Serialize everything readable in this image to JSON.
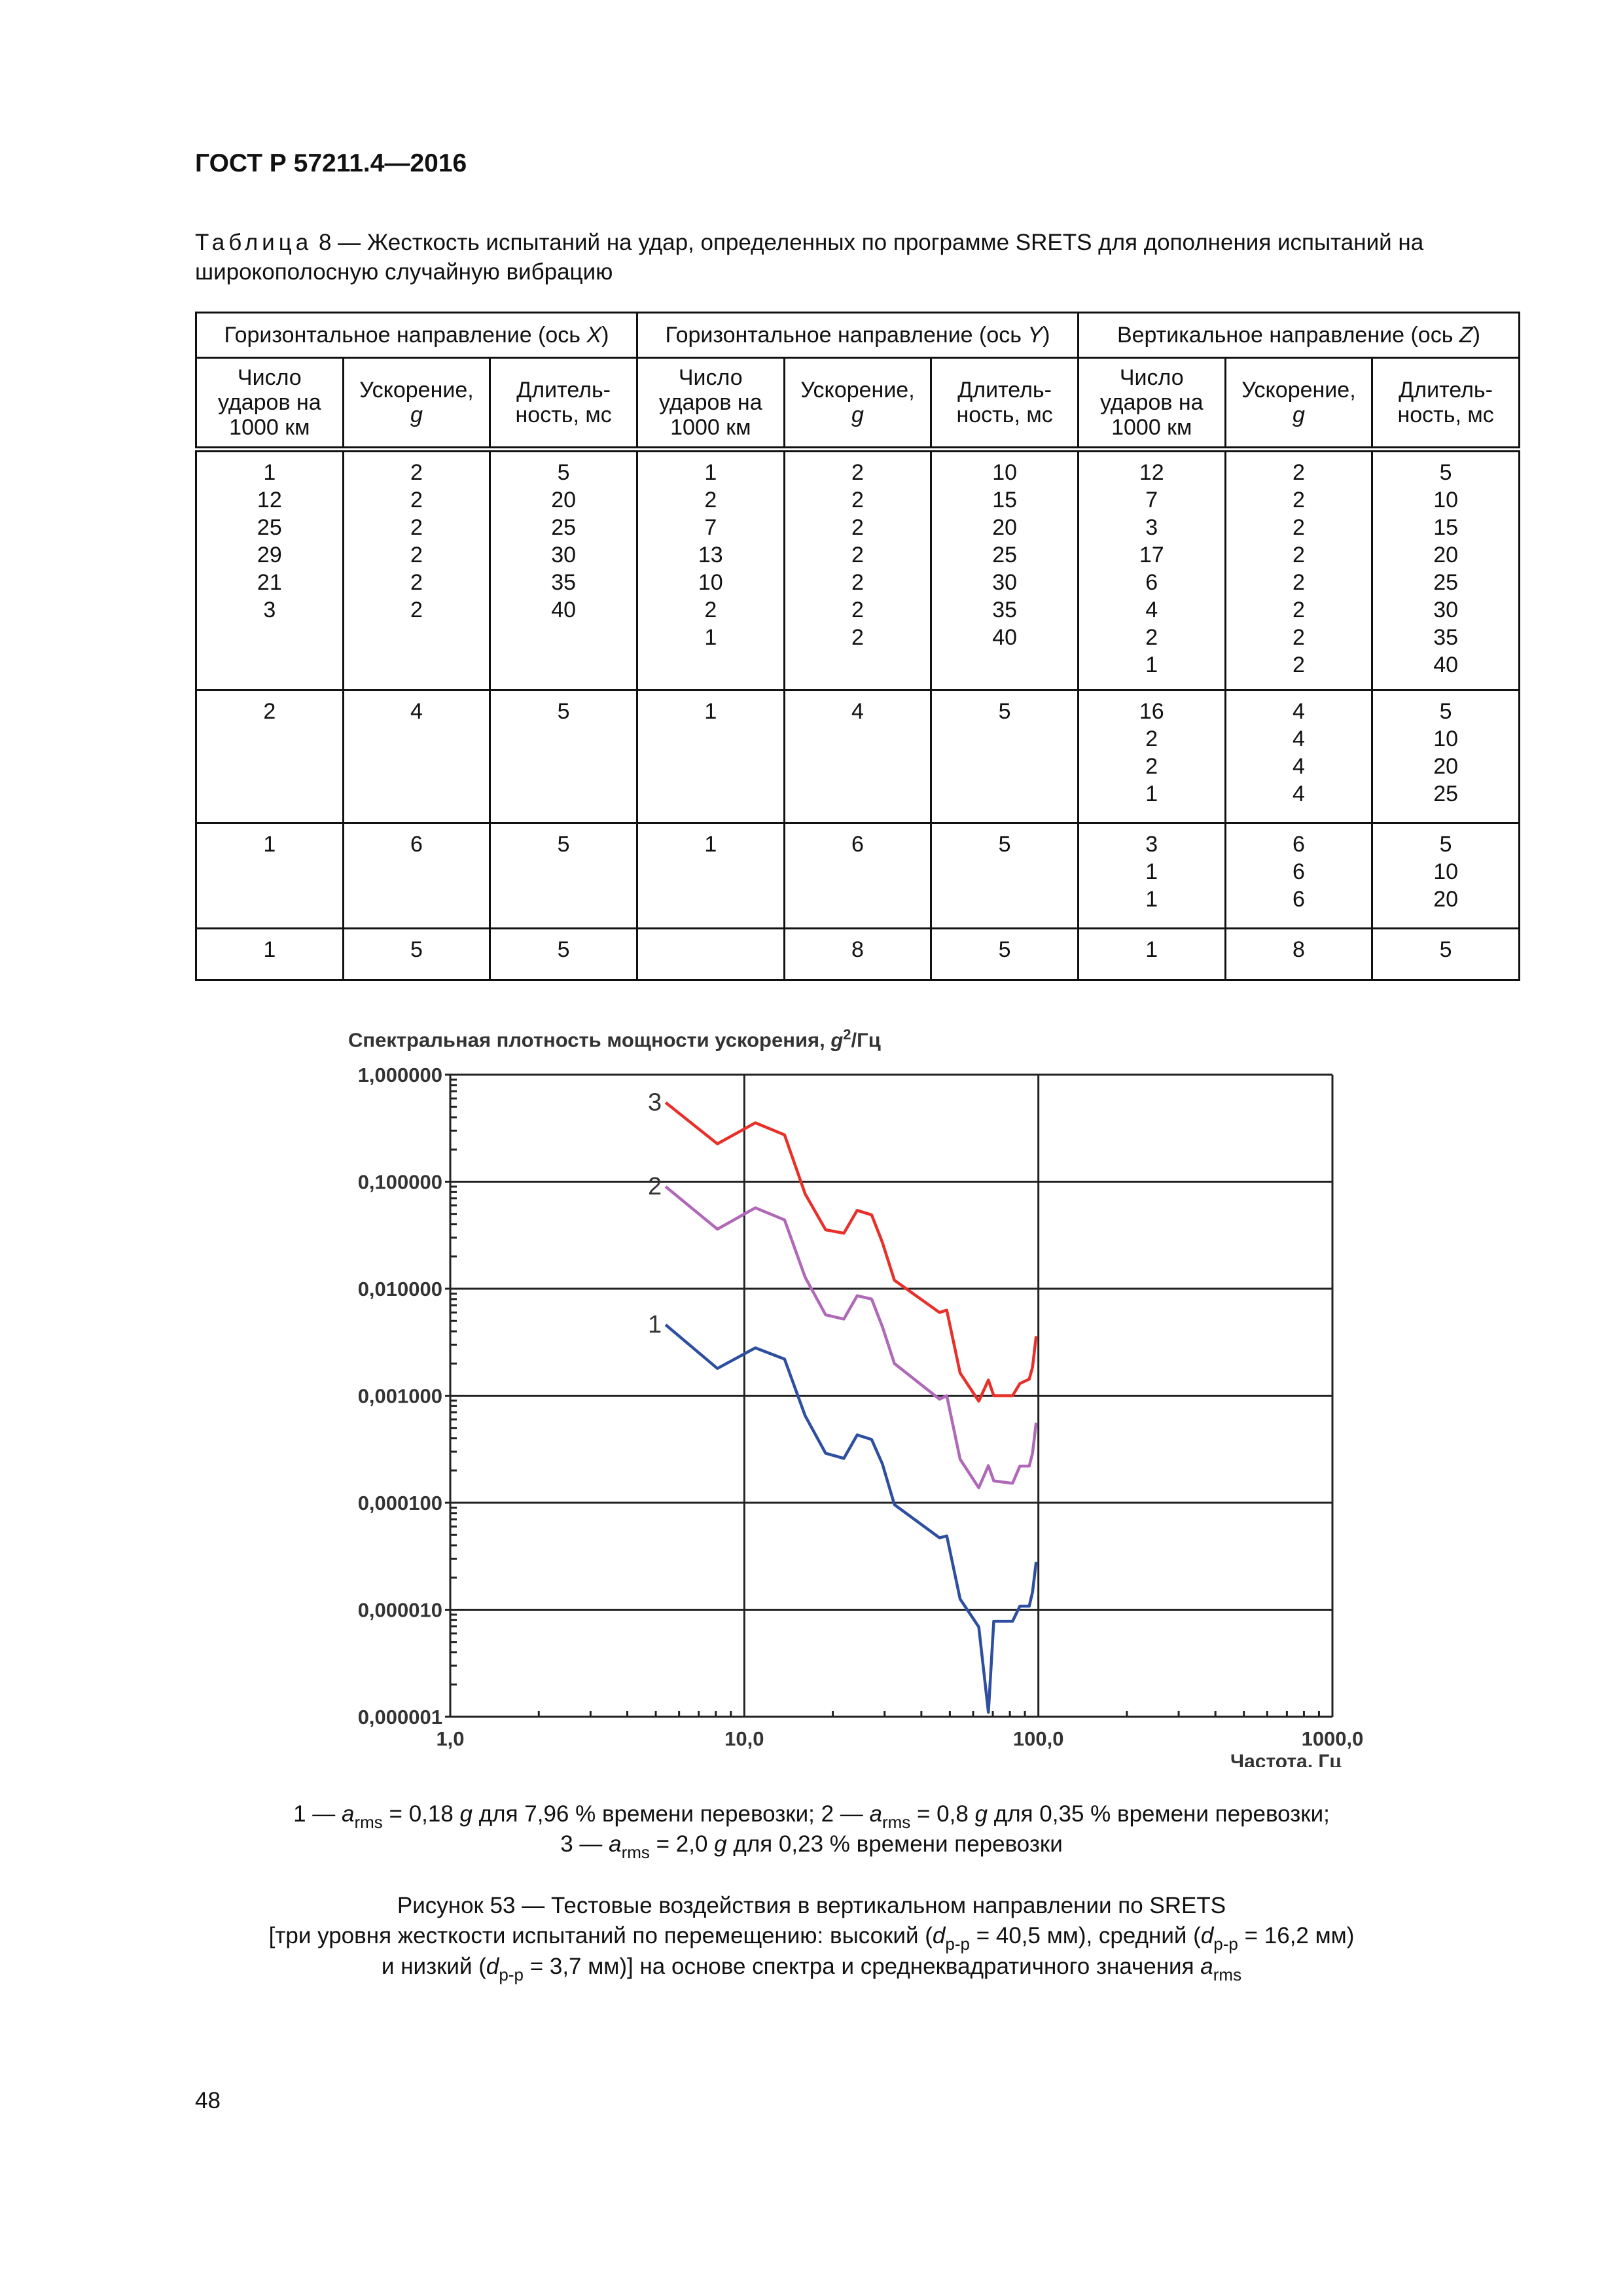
{
  "header": {
    "doc_id": "ГОСТ Р 57211.4—2016"
  },
  "table": {
    "caption_prefix": "Таблица",
    "caption_rest": " 8 — Жесткость испытаний на удар, определенных по программе SRETS для дополнения испытаний на широкополосную случайную вибрацию",
    "groups": [
      {
        "label": "Горизонтальное направление (ось ",
        "axis": "X",
        "end": ")"
      },
      {
        "label": "Горизонтальное направление (ось ",
        "axis": "Y",
        "end": ")"
      },
      {
        "label": "Вертикальное направление (ось ",
        "axis": "Z",
        "end": ")"
      }
    ],
    "subheaders": {
      "count": "Число\nударов на\n1000 км",
      "accel": "Ускорение,",
      "accel_unit": "g",
      "duration": "Длитель-\nность, мс"
    },
    "rows": [
      [
        "1\n12\n25\n29\n21\n3",
        "2\n2\n2\n2\n2\n2",
        "5\n20\n25\n30\n35\n40",
        "1\n2\n7\n13\n10\n2\n1",
        "2\n2\n2\n2\n2\n2\n2",
        "10\n15\n20\n25\n30\n35\n40",
        "12\n7\n3\n17\n6\n4\n2\n1",
        "2\n2\n2\n2\n2\n2\n2\n2",
        "5\n10\n15\n20\n25\n30\n35\n40"
      ],
      [
        "2",
        "4",
        "5",
        "1",
        "4",
        "5",
        "16\n2\n2\n1",
        "4\n4\n4\n4",
        "5\n10\n20\n25"
      ],
      [
        "1",
        "6",
        "5",
        "1",
        "6",
        "5",
        "3\n1\n1",
        "6\n6\n6",
        "5\n10\n20"
      ],
      [
        "1",
        "5",
        "5",
        "",
        "8",
        "5",
        "1",
        "8",
        "5"
      ]
    ]
  },
  "chart_data": {
    "type": "line",
    "ylabel_main": "Спектральная плотность мощности ускорения, ",
    "ylabel_unit_g": "g",
    "ylabel_sup": "2",
    "ylabel_tail": "/Гц",
    "xlabel": "Частота, Гц",
    "x_scale": "log",
    "y_scale": "log",
    "xlim": [
      1,
      1000
    ],
    "ylim": [
      1e-06,
      1
    ],
    "grid": true,
    "x_ticks": [
      {
        "v": 1,
        "label": "1,0"
      },
      {
        "v": 10,
        "label": "10,0"
      },
      {
        "v": 100,
        "label": "100,0"
      },
      {
        "v": 1000,
        "label": "1000,0"
      }
    ],
    "y_ticks": [
      {
        "v": 1,
        "label": "1,000000"
      },
      {
        "v": 0.1,
        "label": "0,100000"
      },
      {
        "v": 0.01,
        "label": "0,010000"
      },
      {
        "v": 0.001,
        "label": "0,001000"
      },
      {
        "v": 0.0001,
        "label": "0,000100"
      },
      {
        "v": 1e-05,
        "label": "0,000010"
      },
      {
        "v": 1e-06,
        "label": "0,000001"
      }
    ],
    "x": [
      5.4,
      8.1,
      10.9,
      13.7,
      16.1,
      18.9,
      21.8,
      24.2,
      27.1,
      29.5,
      32.4,
      46.1,
      48.8,
      54.2,
      62.7,
      67.6,
      70.5,
      81.7,
      86.5,
      93.1,
      95.5,
      98.3
    ],
    "series": [
      {
        "name": "1",
        "color": "#2e4fa0",
        "values": [
          0.0046,
          0.0018,
          0.0028,
          0.0022,
          0.00065,
          0.00029,
          0.00026,
          0.00043,
          0.00039,
          0.00023,
          9.6e-05,
          4.7e-05,
          4.9e-05,
          1.26e-05,
          6.9e-06,
          1.1e-06,
          7.8e-06,
          7.8e-06,
          1.08e-05,
          1.08e-05,
          1.46e-05,
          2.8e-05
        ]
      },
      {
        "name": "2",
        "color": "#b068b8",
        "values": [
          0.09,
          0.036,
          0.057,
          0.044,
          0.0128,
          0.0057,
          0.0052,
          0.0086,
          0.008,
          0.0044,
          0.002,
          0.00093,
          0.001,
          0.000255,
          0.000138,
          0.000222,
          0.00016,
          0.000152,
          0.00022,
          0.00022,
          0.00029,
          0.00056
        ]
      },
      {
        "name": "3",
        "color": "#e8302a",
        "values": [
          0.55,
          0.226,
          0.355,
          0.274,
          0.077,
          0.0355,
          0.033,
          0.054,
          0.049,
          0.027,
          0.012,
          0.006,
          0.0063,
          0.00163,
          0.00089,
          0.0014,
          0.001,
          0.001,
          0.0013,
          0.00143,
          0.00184,
          0.0036
        ]
      }
    ]
  },
  "legend": {
    "l1_a": "1 — ",
    "l1_b": " = 0,18 ",
    "l1_c": " для 7,96 % времени перевозки; 2 — ",
    "l1_d": " = 0,8 ",
    "l1_e": " для 0,35 % времени перевозки;",
    "l2_a": "3 — ",
    "l2_b": " = 2,0 ",
    "l2_c": " для 0,23 % времени перевозки",
    "a": "a",
    "rms": "rms",
    "g": "g"
  },
  "figure_caption": {
    "line1": "Рисунок 53 — Тестовые воздействия в вертикальном направлении по SRETS",
    "l2_a": "[три уровня жесткости испытаний по перемещению: высокий (",
    "d": "d",
    "pp": "p-p",
    "l2_b": " = 40,5 мм), средний (",
    "l2_c": " = 16,2 мм)",
    "l3_a": "и низкий (",
    "l3_b": " = 3,7 мм)] на основе спектра и среднеквадратичного значения "
  },
  "page_number": "48"
}
